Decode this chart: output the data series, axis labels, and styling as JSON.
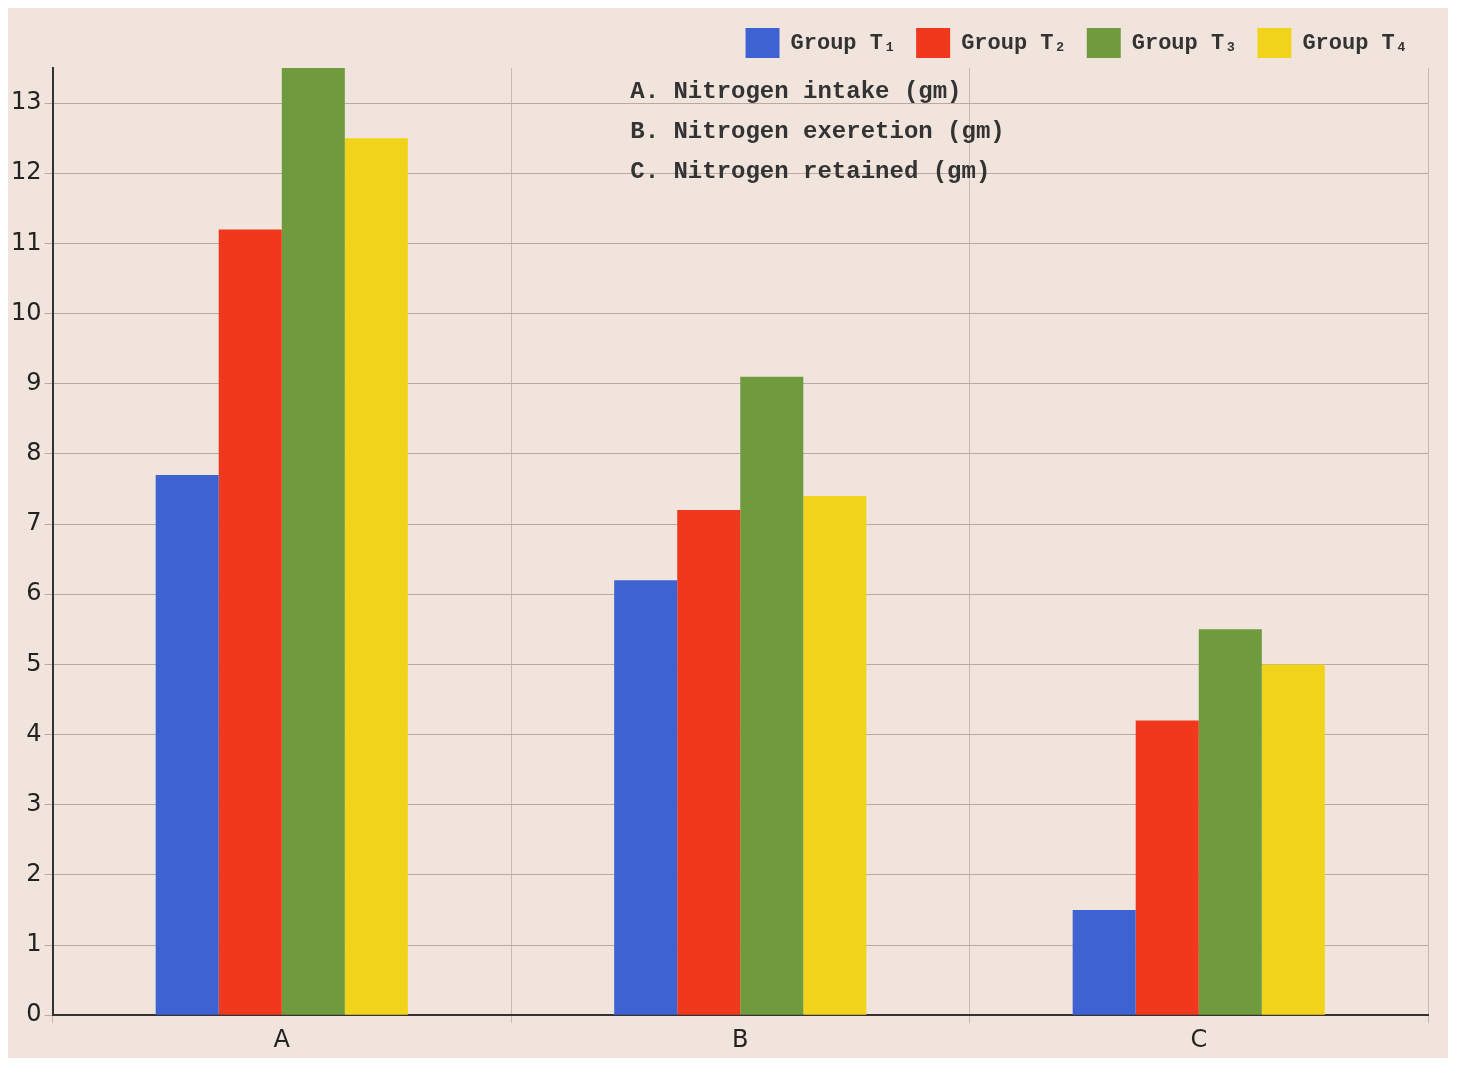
{
  "chart_data": {
    "type": "bar",
    "categories": [
      "A",
      "B",
      "C"
    ],
    "series": [
      {
        "name": "Group T₁",
        "color": "#3f62d2",
        "values": [
          7.7,
          6.2,
          1.5
        ]
      },
      {
        "name": "Group T₂",
        "color": "#f0381c",
        "values": [
          11.2,
          7.2,
          4.2
        ]
      },
      {
        "name": "Group T₃",
        "color": "#6f9b3e",
        "values": [
          13.5,
          9.1,
          5.5
        ]
      },
      {
        "name": "Group T₄",
        "color": "#f2d31c",
        "values": [
          12.5,
          7.4,
          5.0
        ]
      }
    ],
    "ylim": [
      0,
      13.5
    ],
    "yticks": [
      0,
      1,
      2,
      3,
      4,
      5,
      6,
      7,
      8,
      9,
      10,
      11,
      12,
      13
    ],
    "grid": true,
    "legend": "top right",
    "annotations": [
      "A. Nitrogen intake (gm)",
      "B. Nitrogen exeretion (gm)",
      "C. Nitrogen retained (gm)"
    ]
  }
}
